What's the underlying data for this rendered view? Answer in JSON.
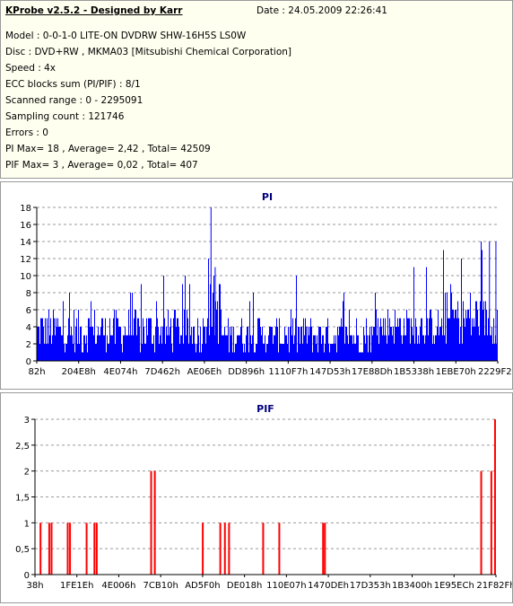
{
  "app": {
    "title": "KProbe v2.5.2 - Designed by Karr",
    "date": "Date : 24.05.2009 22:26:41"
  },
  "info": {
    "model": "Model : 0-0-1-0 LITE-ON DVDRW SHW-16H5S  LS0W",
    "disc": "Disc : DVD+RW , MKMA03 [Mitsubishi Chemical Corporation]",
    "speed": "Speed : 4x",
    "ecc": "ECC blocks sum (PI/PIF) : 8/1",
    "range": "Scanned range : 0 - 2295091",
    "sampling": "Sampling count : 121746",
    "errors": "Errors : 0",
    "pi": "PI Max= 18 , Average= 2,42 , Total= 42509",
    "pif": "PIF Max= 3 , Average= 0,02 , Total= 407"
  },
  "colors": {
    "pi_bar": "#0000ff",
    "pif_bar": "#ff0000",
    "title_color": "#00007f",
    "grid": "#9a9a9a"
  },
  "chart_data": [
    {
      "type": "bar",
      "title": "PI",
      "ylim": [
        0,
        18
      ],
      "yticks": [
        0,
        2,
        4,
        6,
        8,
        10,
        12,
        14,
        16,
        18
      ],
      "ytick_labels": [
        "0",
        "2",
        "4",
        "6",
        "8",
        "10",
        "12",
        "14",
        "16",
        "18"
      ],
      "xtick_labels": [
        "82h",
        "204E8h",
        "4E074h",
        "7D462h",
        "AE06Eh",
        "DD896h",
        "1110F7h",
        "147D53h",
        "17E88Dh",
        "1B5338h",
        "1EBE70h",
        "2229F2h"
      ],
      "grid": "horizontal dashed",
      "segments": [
        {
          "from": 0.0,
          "to": 0.36,
          "min": 1,
          "max": 6,
          "peak": 10
        },
        {
          "from": 0.36,
          "to": 0.4,
          "min": 2,
          "max": 10,
          "peak": 12
        },
        {
          "from": 0.4,
          "to": 0.56,
          "min": 1,
          "max": 5,
          "peak": 9
        },
        {
          "from": 0.56,
          "to": 0.74,
          "min": 1,
          "max": 5,
          "peak": 10
        },
        {
          "from": 0.74,
          "to": 0.88,
          "min": 2,
          "max": 6,
          "peak": 12
        },
        {
          "from": 0.88,
          "to": 1.0,
          "min": 2,
          "max": 8,
          "peak": 14
        }
      ],
      "peaks": [
        {
          "x": 0.378,
          "y": 18
        },
        {
          "x": 0.387,
          "y": 11
        },
        {
          "x": 0.982,
          "y": 14
        },
        {
          "x": 0.996,
          "y": 14
        }
      ]
    },
    {
      "type": "bar",
      "title": "PIF",
      "ylim": [
        0,
        3
      ],
      "yticks": [
        0,
        0.5,
        1,
        1.5,
        2,
        2.5,
        3
      ],
      "ytick_labels": [
        "0",
        "0,5",
        "1",
        "1,5",
        "2",
        "2,5",
        "3"
      ],
      "xtick_labels": [
        "38h",
        "1FE1Eh",
        "4E006h",
        "7CB10h",
        "AD5F0h",
        "DE018h",
        "110E07h",
        "1470DEh",
        "17D353h",
        "1B3400h",
        "1E95ECh",
        "21F82Fh"
      ],
      "grid": "horizontal dashed",
      "bars": [
        {
          "x": 0.012,
          "y": 1
        },
        {
          "x": 0.031,
          "y": 1
        },
        {
          "x": 0.036,
          "y": 1
        },
        {
          "x": 0.071,
          "y": 1
        },
        {
          "x": 0.076,
          "y": 1
        },
        {
          "x": 0.112,
          "y": 1
        },
        {
          "x": 0.129,
          "y": 1
        },
        {
          "x": 0.134,
          "y": 1
        },
        {
          "x": 0.252,
          "y": 2
        },
        {
          "x": 0.26,
          "y": 2
        },
        {
          "x": 0.364,
          "y": 1
        },
        {
          "x": 0.402,
          "y": 1
        },
        {
          "x": 0.412,
          "y": 1
        },
        {
          "x": 0.421,
          "y": 1
        },
        {
          "x": 0.495,
          "y": 1
        },
        {
          "x": 0.53,
          "y": 1
        },
        {
          "x": 0.625,
          "y": 1
        },
        {
          "x": 0.629,
          "y": 1
        },
        {
          "x": 0.968,
          "y": 2
        },
        {
          "x": 0.99,
          "y": 2
        },
        {
          "x": 0.998,
          "y": 3
        }
      ]
    }
  ]
}
